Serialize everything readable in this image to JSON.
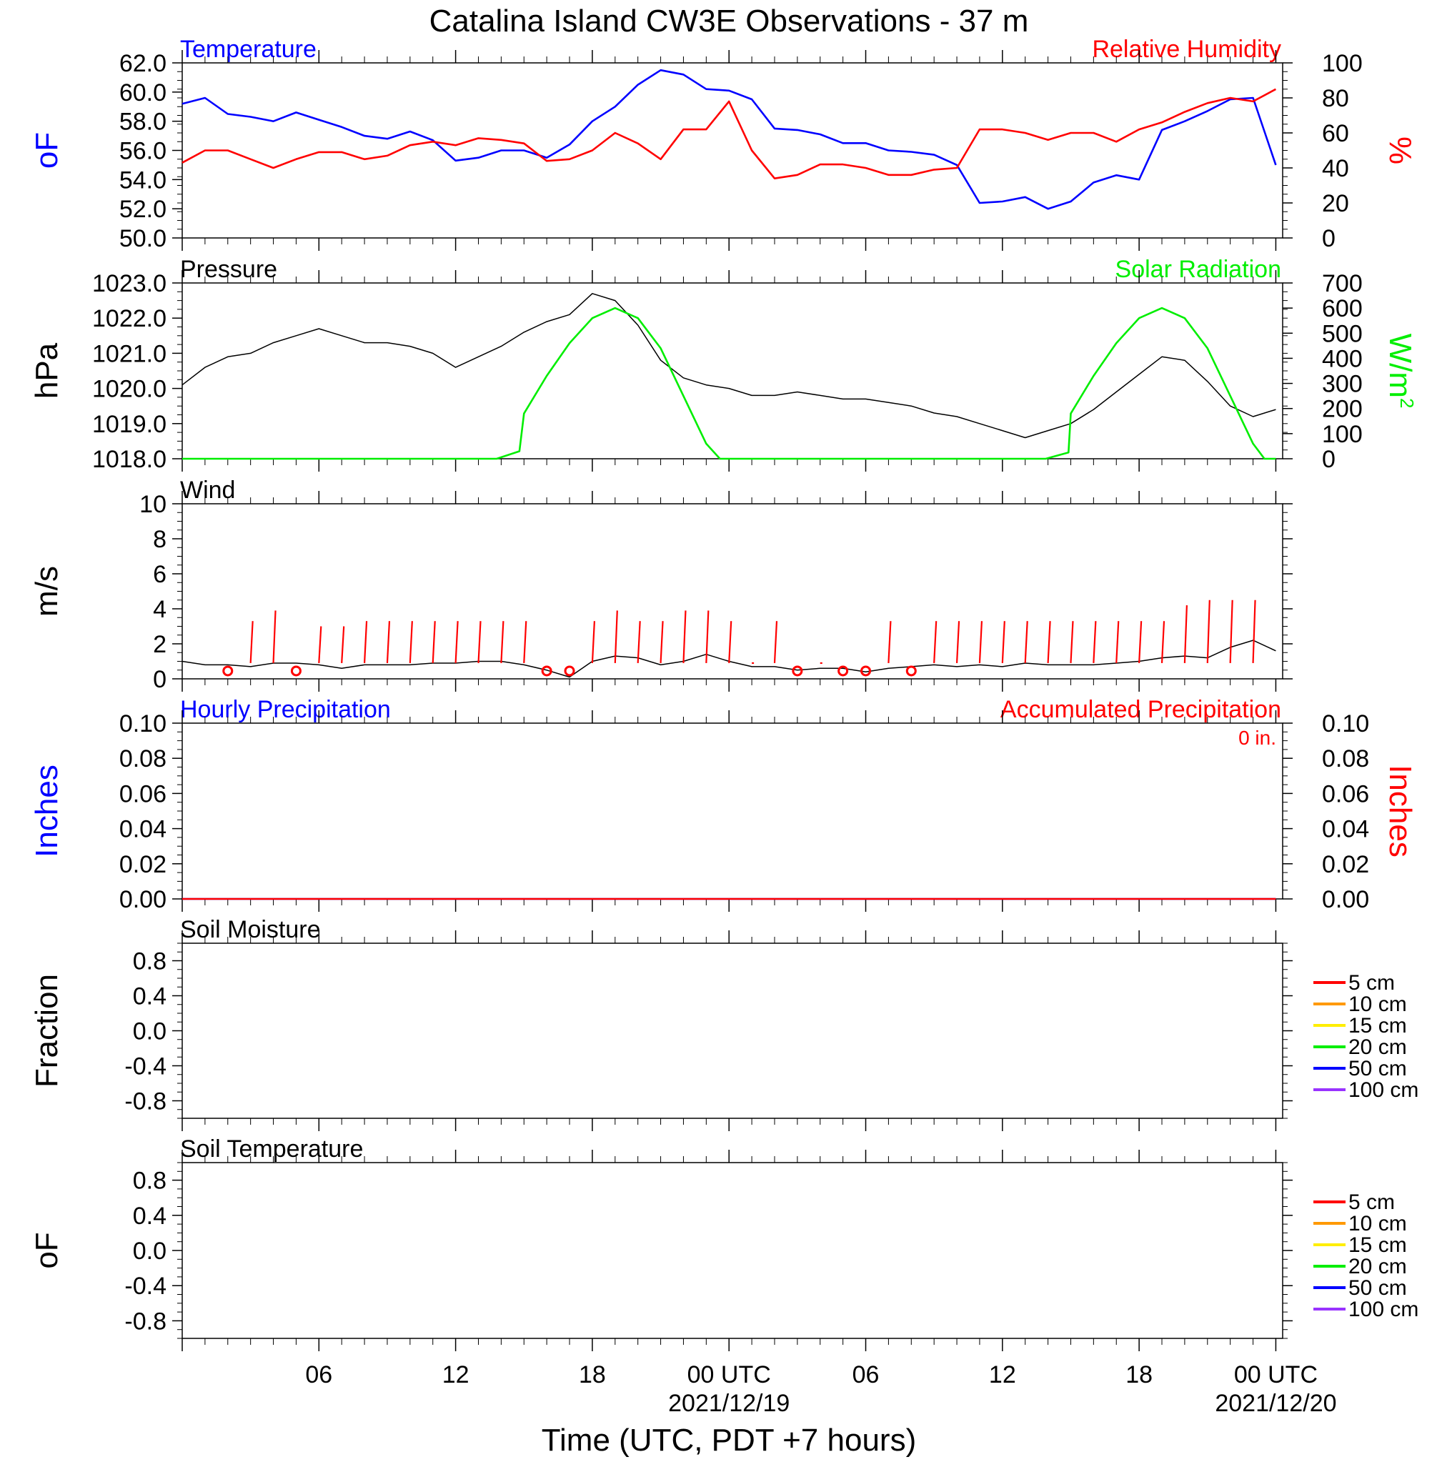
{
  "page": {
    "title": "Catalina Island CW3E Observations - 37 m",
    "x_axis_label": "Time (UTC, PDT +7 hours)",
    "x_tick_labels": [
      "06",
      "12",
      "18",
      "00 UTC",
      "06",
      "12",
      "18",
      "00 UTC"
    ],
    "date_labels": [
      "2021/12/19",
      "2021/12/20"
    ]
  },
  "colors": {
    "blue": "#0000ff",
    "red": "#ff0000",
    "green": "#00ee00",
    "black": "#000000",
    "orange": "#ff9900",
    "yellow": "#ffee00",
    "purple": "#9933ff"
  },
  "chart_data": [
    {
      "type": "line",
      "left_title": "Temperature",
      "right_title": "Relative Humidity",
      "ylabel": "oF",
      "ylabel_right": "%",
      "ylim": [
        50,
        62
      ],
      "ylim_right": [
        0,
        100
      ],
      "yticks": [
        "50.0",
        "52.0",
        "54.0",
        "56.0",
        "58.0",
        "60.0",
        "62.0"
      ],
      "yticks_right": [
        "0",
        "20",
        "40",
        "60",
        "80",
        "100"
      ],
      "x_hours": [
        0,
        1,
        2,
        3,
        4,
        5,
        6,
        7,
        8,
        9,
        10,
        11,
        12,
        13,
        14,
        15,
        16,
        17,
        18,
        19,
        20,
        21,
        22,
        23,
        24,
        25,
        26,
        27,
        28,
        29,
        30,
        31,
        32,
        33,
        34,
        35,
        36,
        37,
        38,
        39,
        40,
        41,
        42,
        43,
        44,
        45,
        46,
        47,
        48
      ],
      "series": [
        {
          "name": "Temperature",
          "axis": "left",
          "color": "#0000ff",
          "values": [
            59.2,
            59.6,
            58.5,
            58.3,
            58.0,
            58.6,
            58.1,
            57.6,
            57.0,
            56.8,
            57.3,
            56.7,
            55.3,
            55.5,
            56.0,
            56.0,
            55.5,
            56.4,
            58.0,
            59.0,
            60.5,
            61.5,
            61.2,
            60.2,
            60.1,
            59.5,
            57.5,
            57.4,
            57.1,
            56.5,
            56.5,
            56.0,
            55.9,
            55.7,
            55.0,
            52.4,
            52.5,
            52.8,
            52.0,
            52.5,
            53.8,
            54.3,
            54.0,
            57.4,
            58.0,
            58.7,
            59.5,
            59.6,
            55.0
          ]
        },
        {
          "name": "Relative Humidity",
          "axis": "right",
          "color": "#ff0000",
          "values": [
            43,
            50,
            50,
            45,
            40,
            45,
            49,
            49,
            45,
            47,
            53,
            55,
            53,
            57,
            56,
            54,
            44,
            45,
            50,
            60,
            54,
            45,
            62,
            62,
            78,
            50,
            34,
            36,
            42,
            42,
            40,
            36,
            36,
            39,
            40,
            62,
            62,
            60,
            56,
            60,
            60,
            55,
            62,
            66,
            72,
            77,
            80,
            78,
            85
          ]
        }
      ]
    },
    {
      "type": "line",
      "left_title": "Pressure",
      "right_title": "Solar Radiation",
      "ylabel": "hPa",
      "ylabel_right": "W/m",
      "ylabel_right_sup": "2",
      "ylim": [
        1018,
        1023
      ],
      "ylim_right": [
        0,
        700
      ],
      "yticks": [
        "1018.0",
        "1019.0",
        "1020.0",
        "1021.0",
        "1022.0",
        "1023.0"
      ],
      "yticks_right": [
        "0",
        "100",
        "200",
        "300",
        "400",
        "500",
        "600",
        "700"
      ],
      "x_hours": [
        0,
        1,
        2,
        3,
        4,
        5,
        6,
        7,
        8,
        9,
        10,
        11,
        12,
        13,
        14,
        15,
        16,
        17,
        18,
        19,
        20,
        21,
        22,
        23,
        24,
        25,
        26,
        27,
        28,
        29,
        30,
        31,
        32,
        33,
        34,
        35,
        36,
        37,
        38,
        39,
        40,
        41,
        42,
        43,
        44,
        45,
        46,
        47,
        48
      ],
      "series": [
        {
          "name": "Pressure",
          "axis": "left",
          "color": "#000000",
          "values": [
            1020.1,
            1020.6,
            1020.9,
            1021.0,
            1021.3,
            1021.5,
            1021.7,
            1021.5,
            1021.3,
            1021.3,
            1021.2,
            1021.0,
            1020.6,
            1020.9,
            1021.2,
            1021.6,
            1021.9,
            1022.1,
            1022.7,
            1022.5,
            1021.8,
            1020.8,
            1020.3,
            1020.1,
            1020.0,
            1019.8,
            1019.8,
            1019.9,
            1019.8,
            1019.7,
            1019.7,
            1019.6,
            1019.5,
            1019.3,
            1019.2,
            1019.0,
            1018.8,
            1018.6,
            1018.8,
            1019.0,
            1019.4,
            1019.9,
            1020.4,
            1020.9,
            1020.8,
            1020.2,
            1019.5,
            1019.2,
            1019.4
          ]
        },
        {
          "name": "Solar Radiation",
          "axis": "right",
          "color": "#00ee00",
          "x": [
            0,
            13.8,
            14.8,
            15.0,
            16.0,
            17.0,
            18.0,
            19.0,
            20.0,
            21.0,
            22.0,
            23.0,
            23.6,
            23.8,
            37.9,
            38.9,
            39.0,
            40.0,
            41.0,
            42.0,
            43.0,
            44.0,
            45.0,
            46.0,
            47.0,
            47.5,
            48.0
          ],
          "values": [
            0,
            0,
            30,
            180,
            330,
            460,
            560,
            600,
            560,
            440,
            250,
            60,
            0,
            0,
            0,
            25,
            180,
            330,
            460,
            560,
            600,
            560,
            440,
            250,
            60,
            0,
            0
          ]
        }
      ]
    },
    {
      "type": "line",
      "left_title": "Wind",
      "ylabel": "m/s",
      "ylim": [
        0,
        10
      ],
      "yticks": [
        "0",
        "2",
        "4",
        "6",
        "8",
        "10"
      ],
      "x_hours": [
        0,
        1,
        2,
        3,
        4,
        5,
        6,
        7,
        8,
        9,
        10,
        11,
        12,
        13,
        14,
        15,
        16,
        17,
        18,
        19,
        20,
        21,
        22,
        23,
        24,
        25,
        26,
        27,
        28,
        29,
        30,
        31,
        32,
        33,
        34,
        35,
        36,
        37,
        38,
        39,
        40,
        41,
        42,
        43,
        44,
        45,
        46,
        47,
        48
      ],
      "series": [
        {
          "name": "Wind Speed",
          "color": "#000000",
          "values": [
            1.0,
            0.8,
            0.8,
            0.7,
            0.9,
            0.9,
            0.8,
            0.6,
            0.8,
            0.8,
            0.8,
            0.9,
            0.9,
            1.0,
            1.0,
            0.8,
            0.5,
            0.1,
            1.0,
            1.3,
            1.2,
            0.8,
            1.0,
            1.4,
            1.0,
            0.7,
            0.7,
            0.5,
            0.6,
            0.6,
            0.4,
            0.6,
            0.7,
            0.8,
            0.7,
            0.8,
            0.7,
            0.9,
            0.8,
            0.8,
            0.8,
            0.9,
            1.0,
            1.2,
            1.3,
            1.2,
            1.8,
            2.2,
            1.6
          ]
        }
      ],
      "wind_barbs": {
        "color": "#ff0000",
        "hours": [
          2,
          3,
          4,
          5,
          6,
          7,
          8,
          9,
          10,
          11,
          12,
          13,
          14,
          15,
          16,
          17,
          18,
          19,
          20,
          21,
          22,
          23,
          24,
          25,
          26,
          27,
          28,
          29,
          30,
          31,
          32,
          33,
          34,
          35,
          36,
          37,
          38,
          39,
          40,
          41,
          42,
          43,
          44,
          45,
          46,
          47
        ],
        "calm": [
          true,
          false,
          false,
          true,
          false,
          false,
          false,
          false,
          false,
          false,
          false,
          false,
          false,
          false,
          true,
          true,
          false,
          false,
          false,
          false,
          false,
          false,
          false,
          false,
          false,
          true,
          false,
          true,
          true,
          false,
          true,
          false,
          false,
          false,
          false,
          false,
          false,
          false,
          false,
          false,
          false,
          false,
          false,
          false,
          false,
          false
        ],
        "lengths": [
          0,
          0.8,
          1.0,
          0,
          0.7,
          0.7,
          0.8,
          0.8,
          0.8,
          0.8,
          0.8,
          0.8,
          0.8,
          0.8,
          0,
          0,
          0.8,
          1.0,
          0.8,
          0.8,
          1.0,
          1.0,
          0.8,
          0,
          0.8,
          0,
          0,
          0.8,
          0,
          0.8,
          0.8,
          0.8,
          0.8,
          0.8,
          0.8,
          0.8,
          0.8,
          0.8,
          0.8,
          0.8,
          0.8,
          0.8,
          1.1,
          1.2,
          1.2,
          1.2
        ]
      }
    },
    {
      "type": "line",
      "left_title": "Hourly Precipitation",
      "right_title": "Accumulated Precipitation",
      "annotation": "0 in.",
      "ylabel": "Inches",
      "ylabel_right": "Inches",
      "ylim": [
        0,
        0.1
      ],
      "ylim_right": [
        0,
        0.1
      ],
      "yticks": [
        "0.00",
        "0.02",
        "0.04",
        "0.06",
        "0.08",
        "0.10"
      ],
      "yticks_right": [
        "0.00",
        "0.02",
        "0.04",
        "0.06",
        "0.08",
        "0.10"
      ],
      "series": [
        {
          "name": "Hourly Precipitation",
          "axis": "left",
          "color": "#0000ff",
          "x": [
            0,
            48
          ],
          "values": [
            0,
            0
          ]
        },
        {
          "name": "Accumulated Precipitation",
          "axis": "right",
          "color": "#ff0000",
          "x": [
            0,
            48
          ],
          "values": [
            0,
            0
          ]
        }
      ]
    },
    {
      "type": "line",
      "left_title": "Soil Moisture",
      "ylabel": "Fraction",
      "ylim": [
        -1,
        1
      ],
      "yticks": [
        "-0.8",
        "-0.4",
        "0.0",
        "0.4",
        "0.8"
      ],
      "legend": [
        {
          "label": "5 cm",
          "color": "#ff0000"
        },
        {
          "label": "10 cm",
          "color": "#ff9900"
        },
        {
          "label": "15 cm",
          "color": "#ffee00"
        },
        {
          "label": "20 cm",
          "color": "#00ee00"
        },
        {
          "label": "50 cm",
          "color": "#0000ff"
        },
        {
          "label": "100 cm",
          "color": "#9933ff"
        }
      ],
      "series": []
    },
    {
      "type": "line",
      "left_title": "Soil Temperature",
      "ylabel": "oF",
      "ylim": [
        -1,
        1
      ],
      "yticks": [
        "-0.8",
        "-0.4",
        "0.0",
        "0.4",
        "0.8"
      ],
      "legend": [
        {
          "label": "5 cm",
          "color": "#ff0000"
        },
        {
          "label": "10 cm",
          "color": "#ff9900"
        },
        {
          "label": "15 cm",
          "color": "#ffee00"
        },
        {
          "label": "20 cm",
          "color": "#00ee00"
        },
        {
          "label": "50 cm",
          "color": "#0000ff"
        },
        {
          "label": "100 cm",
          "color": "#9933ff"
        }
      ],
      "series": []
    }
  ]
}
